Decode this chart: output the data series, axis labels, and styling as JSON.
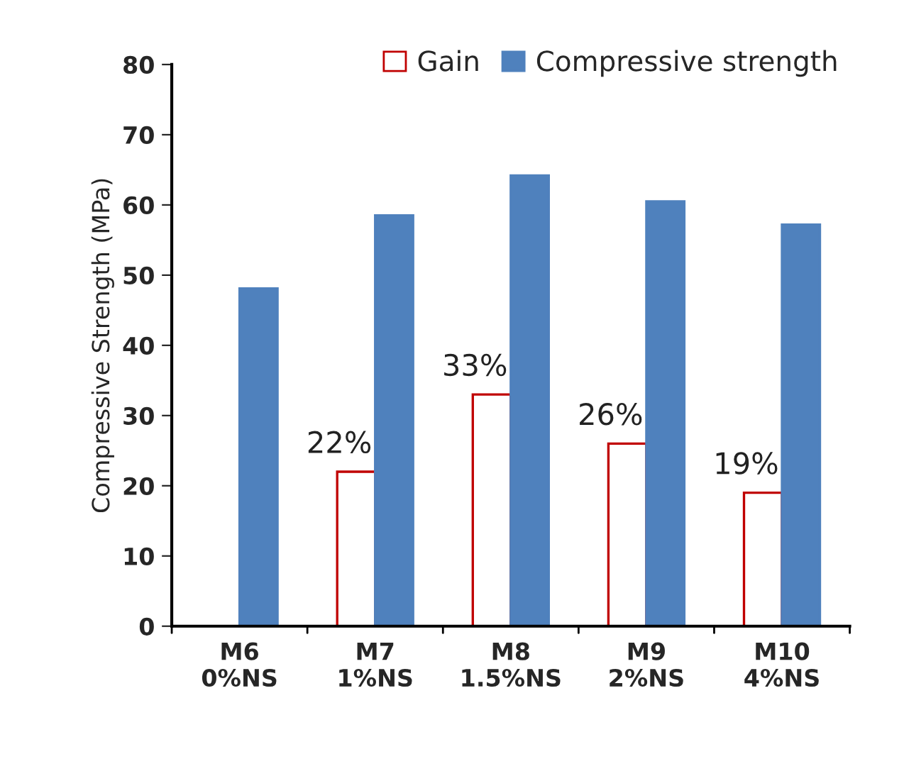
{
  "chart_data": {
    "type": "bar",
    "ylabel": "Compressive Strength (MPa)",
    "categories": [
      "M6\n0%NS",
      "M7\n1%NS",
      "M8\n1.5%NS",
      "M9\n2%NS",
      "M10\n4%NS"
    ],
    "series": [
      {
        "name": "Gain",
        "color": "#c00000",
        "values": [
          null,
          22,
          33,
          26,
          19
        ],
        "value_labels": [
          null,
          "22%",
          "33%",
          "26%",
          "19%"
        ]
      },
      {
        "name": "Compressive strength",
        "color": "#4f81bd",
        "values": [
          48.1,
          58.5,
          64.2,
          60.5,
          57.2
        ]
      }
    ],
    "ylim": [
      0,
      80
    ],
    "yticks": [
      0,
      10,
      20,
      30,
      40,
      50,
      60,
      70,
      80
    ],
    "grid": false,
    "legend": "top right"
  }
}
